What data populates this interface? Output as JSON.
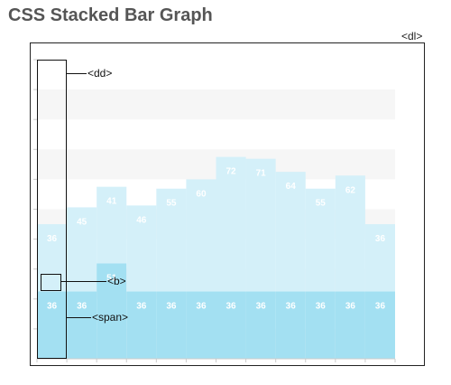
{
  "page": {
    "title": "CSS Stacked Bar Graph",
    "dl_label": "<dl>"
  },
  "annotations": {
    "dd": "<dd>",
    "b": "<b>",
    "span": "<span>"
  },
  "colors": {
    "bar_dark": "#a3e0f2",
    "bar_light": "#d4f0f9",
    "band": "#f6f6f6",
    "value_text": "#ffffff",
    "axis": "#cccccc"
  },
  "chart_data": {
    "type": "bar",
    "stacked": true,
    "grid": true,
    "legend": "none",
    "ylim": [
      0,
      160
    ],
    "series": [
      {
        "values": [
          36,
          36,
          51,
          36,
          36,
          36,
          36,
          36,
          36,
          36,
          36,
          36
        ]
      },
      {
        "values": [
          36,
          45,
          41,
          46,
          55,
          60,
          72,
          71,
          64,
          55,
          62,
          36
        ]
      }
    ]
  }
}
